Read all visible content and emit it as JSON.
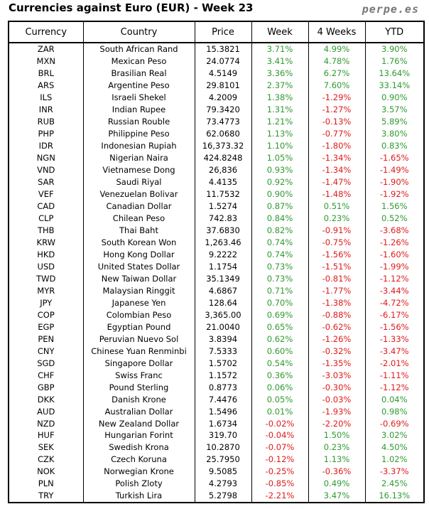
{
  "title": "Currencies against Euro (EUR) - Week 23",
  "brand": "perpe.es",
  "colors": {
    "positive": "#2f9a2f",
    "negative": "#e01a1a"
  },
  "columns": [
    "Currency",
    "Country",
    "Price",
    "Week",
    "4 Weeks",
    "YTD"
  ],
  "rows": [
    [
      "ZAR",
      "South African Rand",
      "15.3821",
      "3.71%",
      "4.99%",
      "3.90%"
    ],
    [
      "MXN",
      "Mexican Peso",
      "24.0774",
      "3.41%",
      "4.78%",
      "1.76%"
    ],
    [
      "BRL",
      "Brasilian Real",
      "4.5149",
      "3.36%",
      "6.27%",
      "13.64%"
    ],
    [
      "ARS",
      "Argentine Peso",
      "29.8101",
      "2.37%",
      "7.60%",
      "33.14%"
    ],
    [
      "ILS",
      "Israeli Shekel",
      "4.2009",
      "1.38%",
      "-1.29%",
      "0.90%"
    ],
    [
      "INR",
      "Indian Rupee",
      "79.3420",
      "1.31%",
      "-1.27%",
      "3.57%"
    ],
    [
      "RUB",
      "Russian Rouble",
      "73.4773",
      "1.21%",
      "-0.13%",
      "5.89%"
    ],
    [
      "PHP",
      "Philippine Peso",
      "62.0680",
      "1.13%",
      "-0.77%",
      "3.80%"
    ],
    [
      "IDR",
      "Indonesian Rupiah",
      "16,373.32",
      "1.10%",
      "-1.80%",
      "0.83%"
    ],
    [
      "NGN",
      "Nigerian Naira",
      "424.8248",
      "1.05%",
      "-1.34%",
      "-1.65%"
    ],
    [
      "VND",
      "Vietnamese Dong",
      "26,836",
      "0.93%",
      "-1.34%",
      "-1.49%"
    ],
    [
      "SAR",
      "Saudi Riyal",
      "4.4135",
      "0.92%",
      "-1.47%",
      "-1.90%"
    ],
    [
      "VEF",
      "Venezuelan Bolivar",
      "11.7532",
      "0.90%",
      "-1.48%",
      "-1.92%"
    ],
    [
      "CAD",
      "Canadian Dollar",
      "1.5274",
      "0.87%",
      "0.51%",
      "1.56%"
    ],
    [
      "CLP",
      "Chilean Peso",
      "742.83",
      "0.84%",
      "0.23%",
      "0.52%"
    ],
    [
      "THB",
      "Thai Baht",
      "37.6830",
      "0.82%",
      "-0.91%",
      "-3.68%"
    ],
    [
      "KRW",
      "South Korean Won",
      "1,263.46",
      "0.74%",
      "-0.75%",
      "-1.26%"
    ],
    [
      "HKD",
      "Hong Kong Dollar",
      "9.2222",
      "0.74%",
      "-1.56%",
      "-1.60%"
    ],
    [
      "USD",
      "United States Dollar",
      "1.1754",
      "0.73%",
      "-1.51%",
      "-1.99%"
    ],
    [
      "TWD",
      "New Taiwan Dollar",
      "35.1349",
      "0.73%",
      "-0.81%",
      "-1.12%"
    ],
    [
      "MYR",
      "Malaysian Ringgit",
      "4.6867",
      "0.71%",
      "-1.77%",
      "-3.44%"
    ],
    [
      "JPY",
      "Japanese Yen",
      "128.64",
      "0.70%",
      "-1.38%",
      "-4.72%"
    ],
    [
      "COP",
      "Colombian Peso",
      "3,365.00",
      "0.69%",
      "-0.88%",
      "-6.17%"
    ],
    [
      "EGP",
      "Egyptian Pound",
      "21.0040",
      "0.65%",
      "-0.62%",
      "-1.56%"
    ],
    [
      "PEN",
      "Peruvian Nuevo Sol",
      "3.8394",
      "0.62%",
      "-1.26%",
      "-1.33%"
    ],
    [
      "CNY",
      "Chinese Yuan Renminbi",
      "7.5333",
      "0.60%",
      "-0.32%",
      "-3.47%"
    ],
    [
      "SGD",
      "Singapore Dollar",
      "1.5702",
      "0.54%",
      "-1.35%",
      "-2.01%"
    ],
    [
      "CHF",
      "Swiss Franc",
      "1.1572",
      "0.36%",
      "-3.03%",
      "-1.11%"
    ],
    [
      "GBP",
      "Pound Sterling",
      "0.8773",
      "0.06%",
      "-0.30%",
      "-1.12%"
    ],
    [
      "DKK",
      "Danish Krone",
      "7.4476",
      "0.05%",
      "-0.03%",
      "0.04%"
    ],
    [
      "AUD",
      "Australian Dollar",
      "1.5496",
      "0.01%",
      "-1.93%",
      "0.98%"
    ],
    [
      "NZD",
      "New Zealand Dollar",
      "1.6734",
      "-0.02%",
      "-2.20%",
      "-0.69%"
    ],
    [
      "HUF",
      "Hungarian Forint",
      "319.70",
      "-0.04%",
      "1.50%",
      "3.02%"
    ],
    [
      "SEK",
      "Swedish Krona",
      "10.2870",
      "-0.07%",
      "0.23%",
      "4.50%"
    ],
    [
      "CZK",
      "Czech Koruna",
      "25.7950",
      "-0.12%",
      "1.13%",
      "1.02%"
    ],
    [
      "NOK",
      "Norwegian Krone",
      "9.5085",
      "-0.25%",
      "-0.36%",
      "-3.37%"
    ],
    [
      "PLN",
      "Polish Zloty",
      "4.2793",
      "-0.85%",
      "0.49%",
      "2.45%"
    ],
    [
      "TRY",
      "Turkish Lira",
      "5.2798",
      "-2.21%",
      "3.47%",
      "16.13%"
    ]
  ]
}
